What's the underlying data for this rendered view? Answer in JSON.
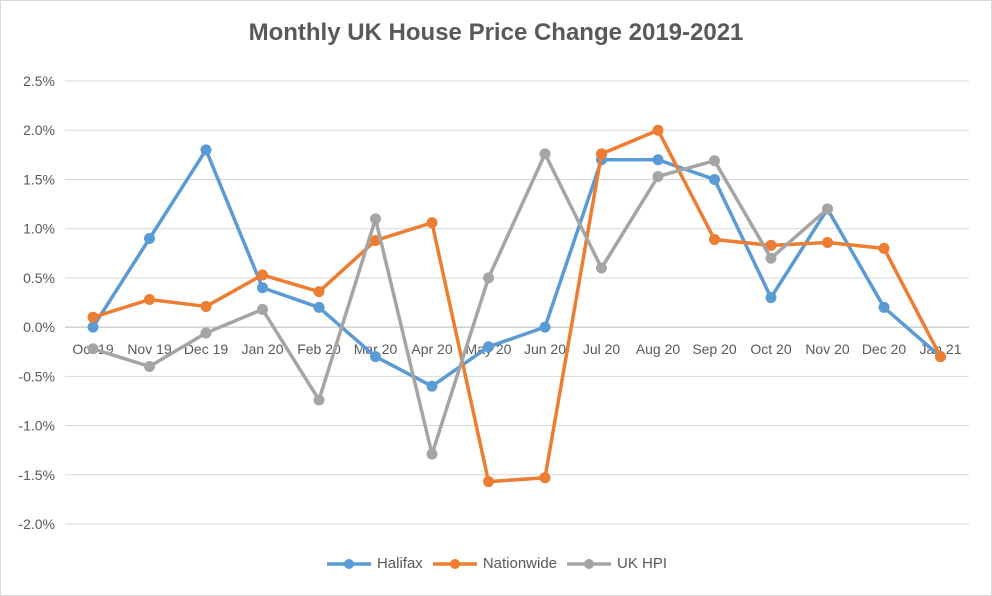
{
  "chart_data": {
    "type": "line",
    "title": "Monthly UK House Price Change 2019-2021",
    "categories": [
      "Oct 19",
      "Nov 19",
      "Dec 19",
      "Jan 20",
      "Feb 20",
      "Mar 20",
      "Apr 20",
      "May 20",
      "Jun 20",
      "Jul 20",
      "Aug 20",
      "Sep 20",
      "Oct 20",
      "Nov 20",
      "Dec 20",
      "Jan 21"
    ],
    "y_ticks": [
      "2.5%",
      "2.0%",
      "1.5%",
      "1.0%",
      "0.5%",
      "0.0%",
      "-0.5%",
      "-1.0%",
      "-1.5%",
      "-2.0%"
    ],
    "ylim": [
      -2.0,
      2.5
    ],
    "ystep": 0.5,
    "grid": true,
    "legend_position": "bottom",
    "series": [
      {
        "name": "Halifax",
        "color": "#5b9bd5",
        "values": [
          0.0,
          0.9,
          1.8,
          0.4,
          0.2,
          -0.3,
          -0.6,
          -0.2,
          0.0,
          1.7,
          1.7,
          1.5,
          0.3,
          1.2,
          0.2,
          -0.3
        ]
      },
      {
        "name": "Nationwide",
        "color": "#ed7d31",
        "values": [
          0.1,
          0.28,
          0.21,
          0.53,
          0.36,
          0.88,
          1.06,
          -1.57,
          -1.53,
          1.76,
          2.0,
          0.89,
          0.83,
          0.86,
          0.8,
          -0.3
        ]
      },
      {
        "name": "UK HPI",
        "color": "#a5a5a5",
        "values": [
          -0.22,
          -0.4,
          -0.06,
          0.18,
          -0.74,
          1.1,
          -1.29,
          0.5,
          1.76,
          0.6,
          1.53,
          1.69,
          0.7,
          1.2,
          null,
          null
        ]
      }
    ]
  }
}
